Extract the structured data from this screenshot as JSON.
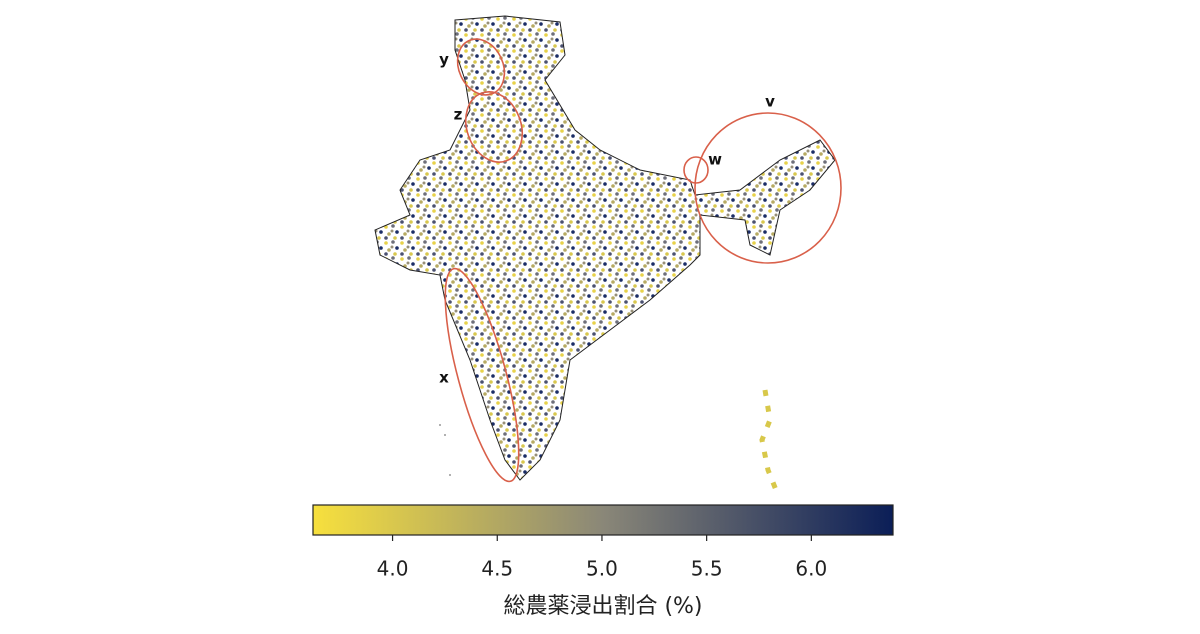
{
  "map": {
    "region_labels": [
      "y",
      "z",
      "w",
      "v",
      "x"
    ],
    "colorbar": {
      "lim": [
        3.62,
        6.39
      ],
      "ticks": [
        {
          "value": 4,
          "label": "4.0"
        },
        {
          "value": 4.5,
          "label": "4.5"
        },
        {
          "value": 5,
          "label": "5.0"
        },
        {
          "value": 5.5,
          "label": "5.5"
        },
        {
          "value": 6,
          "label": "6.0"
        }
      ],
      "colors": [
        "#f7e03d",
        "#8a8778",
        "#0b1e57"
      ],
      "label": "総農薬浸出割合 (%)"
    }
  }
}
